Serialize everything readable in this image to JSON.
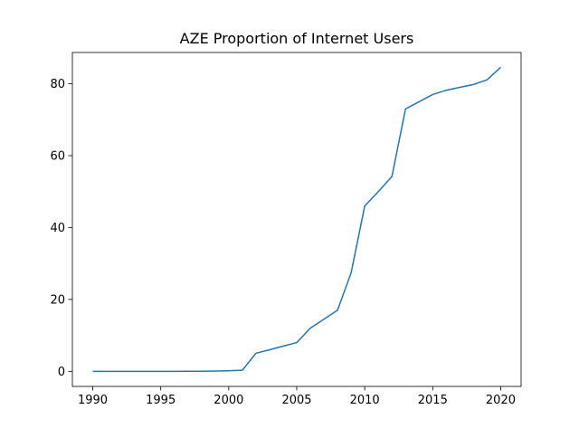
{
  "chart_data": {
    "type": "line",
    "title": "AZE Proportion of Internet Users",
    "xlabel": "",
    "ylabel": "",
    "xlim": [
      1988.5,
      2021.5
    ],
    "ylim": [
      -4.2,
      88.7
    ],
    "xticks": [
      1990,
      1995,
      2000,
      2005,
      2010,
      2015,
      2020
    ],
    "yticks": [
      0,
      20,
      40,
      60,
      80
    ],
    "grid": false,
    "legend": "none",
    "series": [
      {
        "color": "#1f77b4",
        "x": [
          1990,
          1991,
          1992,
          1993,
          1994,
          1995,
          1996,
          1997,
          1998,
          1999,
          2000,
          2001,
          2002,
          2003,
          2004,
          2005,
          2006,
          2007,
          2008,
          2009,
          2010,
          2011,
          2012,
          2013,
          2014,
          2015,
          2016,
          2017,
          2018,
          2019,
          2020
        ],
        "y": [
          0,
          0,
          0,
          0,
          0,
          0,
          0,
          0.01,
          0.03,
          0.08,
          0.15,
          0.3,
          5.0,
          6.0,
          7.0,
          8.0,
          12.0,
          14.5,
          17.0,
          27.4,
          46.0,
          50.0,
          54.2,
          73.0,
          75.0,
          77.0,
          78.2,
          79.0,
          79.8,
          81.1,
          84.6
        ]
      }
    ]
  }
}
